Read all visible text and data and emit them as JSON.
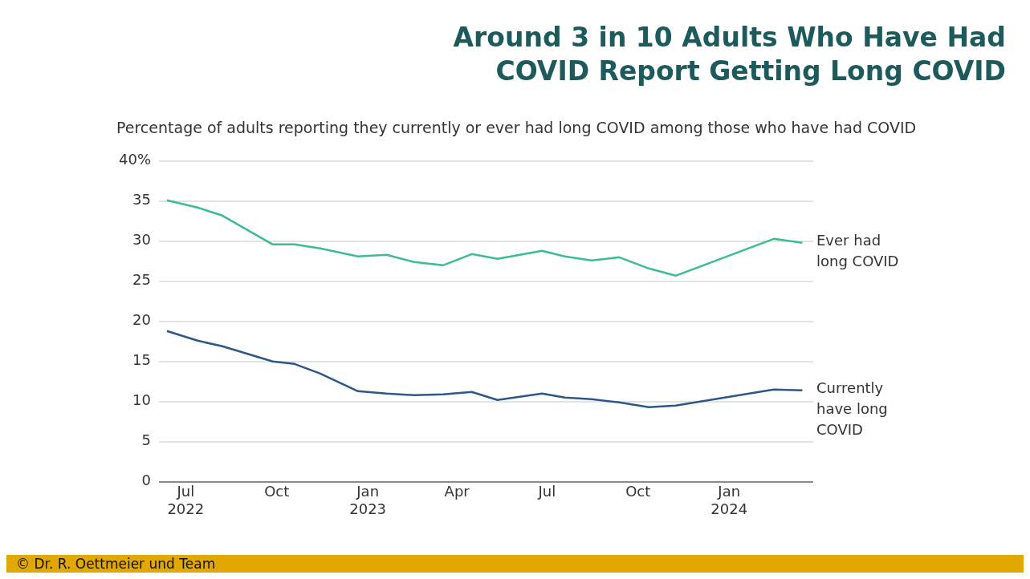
{
  "chart_data": {
    "type": "line",
    "title": "Around 3 in 10 Adults Who Have Had COVID Report Getting Long COVID",
    "subtitle": "Percentage of adults reporting they currently or ever had long COVID among those who have had COVID",
    "x": [
      "2022-06-12",
      "2022-07-13",
      "2022-08-07",
      "2022-09-27",
      "2022-10-19",
      "2022-11-14",
      "2022-12-22",
      "2023-01-20",
      "2023-02-17",
      "2023-03-18",
      "2023-04-16",
      "2023-05-12",
      "2023-06-26",
      "2023-07-19",
      "2023-08-15",
      "2023-09-12",
      "2023-10-12",
      "2023-11-08",
      "2024-02-15",
      "2024-03-15"
    ],
    "series": [
      {
        "name": "Ever had long COVID",
        "color": "#3dbb91",
        "values": [
          35.1,
          34.2,
          33.2,
          29.6,
          29.6,
          29.1,
          28.1,
          28.3,
          27.4,
          27.0,
          28.4,
          27.8,
          28.8,
          28.1,
          27.6,
          28.0,
          26.6,
          25.7,
          30.3,
          29.8
        ]
      },
      {
        "name": "Currently have long COVID",
        "color": "#2b5886",
        "values": [
          18.8,
          17.6,
          16.9,
          15.0,
          14.7,
          13.5,
          11.3,
          11.0,
          10.8,
          10.9,
          11.2,
          10.2,
          11.0,
          10.5,
          10.3,
          9.9,
          9.3,
          9.5,
          11.5,
          11.4
        ]
      }
    ],
    "xlim": [
      "2022-06-04",
      "2024-03-26"
    ],
    "xticks": [
      {
        "value": "2022-07-01",
        "label": "Jul 2022"
      },
      {
        "value": "2022-10-01",
        "label": "Oct"
      },
      {
        "value": "2023-01-01",
        "label": "Jan 2023"
      },
      {
        "value": "2023-04-01",
        "label": "Apr"
      },
      {
        "value": "2023-07-01",
        "label": "Jul"
      },
      {
        "value": "2023-10-01",
        "label": "Oct"
      },
      {
        "value": "2024-01-01",
        "label": "Jan 2024"
      }
    ],
    "ylim": [
      0,
      40
    ],
    "yticks": [
      0,
      5,
      10,
      15,
      20,
      25,
      30,
      35,
      {
        "value": 40,
        "label": "40%"
      }
    ],
    "grid": "y",
    "marker": "none",
    "line_style": "solid",
    "annotations": [
      "© Dr. R. Oettmeier und Team"
    ]
  }
}
